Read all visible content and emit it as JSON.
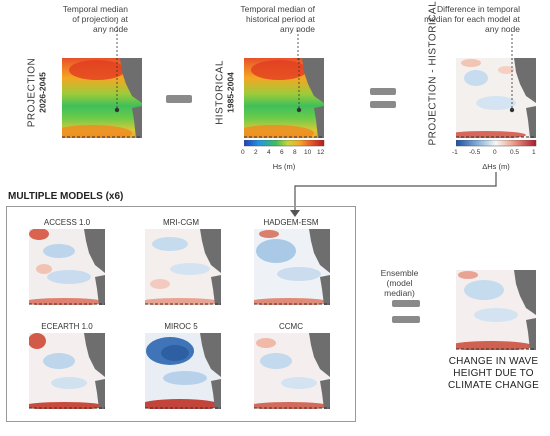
{
  "annotations": {
    "projection_note": "Temporal median of projection at any node",
    "historical_note": "Temporal median of historical period at any node",
    "difference_note": "Difference in temporal median for each model at any node",
    "ensemble_note": "Ensemble (model median)"
  },
  "panels": {
    "projection": {
      "label": "PROJECTION",
      "period": "2026-2045"
    },
    "historical": {
      "label": "HISTORICAL",
      "period": "1985-2004"
    },
    "difference": {
      "label": "PROJECTION - HISTORICAL"
    }
  },
  "colorbars": {
    "hs": {
      "ticks": [
        "0",
        "2",
        "4",
        "6",
        "8",
        "10",
        "12"
      ],
      "title": "Hs (m)"
    },
    "dhs": {
      "ticks": [
        "-1",
        "-0.5",
        "0",
        "0.5",
        "1"
      ],
      "title": "ΔHs (m)"
    }
  },
  "multiple_models": {
    "title": "MULTIPLE MODELS (x6)",
    "models": [
      "ACCESS 1.0",
      "MRI-CGM",
      "HADGEM-ESM",
      "ECEARTH 1.0",
      "MIROC 5",
      "CCMC"
    ]
  },
  "conclusion": [
    "CHANGE IN WAVE",
    "HEIGHT DUE TO",
    "CLIMATE CHANGE"
  ],
  "colors": {
    "land": "#6e6e6e",
    "operator": "#8a8a8a",
    "text": "#333333"
  },
  "icons": [
    "minus-operator-icon",
    "equals-operator-icon",
    "arrow-connector-icon"
  ]
}
